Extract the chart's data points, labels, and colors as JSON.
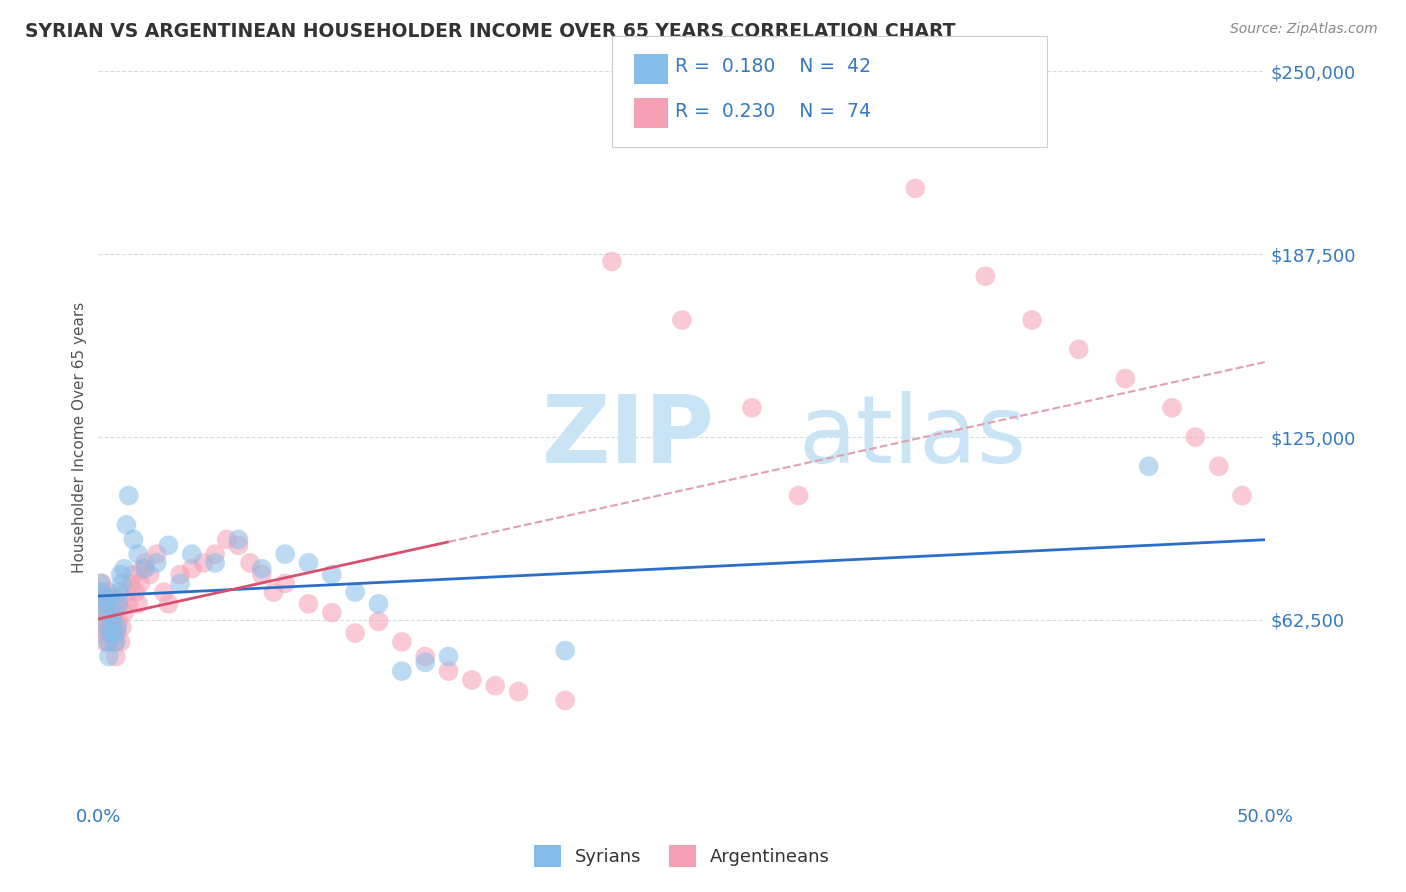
{
  "title": "SYRIAN VS ARGENTINEAN HOUSEHOLDER INCOME OVER 65 YEARS CORRELATION CHART",
  "source": "Source: ZipAtlas.com",
  "ylabel": "Householder Income Over 65 years",
  "xlim": [
    0.0,
    50.0
  ],
  "ylim": [
    0,
    250000
  ],
  "yticks": [
    0,
    62500,
    125000,
    187500,
    250000
  ],
  "ytick_labels": [
    "",
    "$62,500",
    "$125,000",
    "$187,500",
    "$250,000"
  ],
  "legend_R_syrian": "0.180",
  "legend_N_syrian": "42",
  "legend_R_argentinean": "0.230",
  "legend_N_argentinean": "74",
  "syrian_color": "#85bce8",
  "argentinean_color": "#f5a0b5",
  "trend_syrian_color": "#2b6ec7",
  "trend_argentinean_color": "#d94f6e",
  "watermark_zip": "ZIP",
  "watermark_atlas": "atlas",
  "watermark_color": "#c8e4f5",
  "background_color": "#ffffff",
  "syrian_x": [
    0.1,
    0.15,
    0.2,
    0.25,
    0.3,
    0.35,
    0.4,
    0.45,
    0.5,
    0.55,
    0.6,
    0.65,
    0.7,
    0.75,
    0.8,
    0.85,
    0.9,
    0.95,
    1.0,
    1.1,
    1.2,
    1.3,
    1.5,
    1.7,
    2.0,
    2.5,
    3.0,
    3.5,
    4.0,
    5.0,
    6.0,
    7.0,
    8.0,
    9.0,
    10.0,
    11.0,
    12.0,
    13.0,
    14.0,
    15.0,
    20.0,
    45.0
  ],
  "syrian_y": [
    75000,
    72000,
    68000,
    70000,
    65000,
    60000,
    55000,
    50000,
    58000,
    62000,
    70000,
    65000,
    58000,
    55000,
    60000,
    68000,
    72000,
    78000,
    75000,
    80000,
    95000,
    105000,
    90000,
    85000,
    80000,
    82000,
    88000,
    75000,
    85000,
    82000,
    90000,
    80000,
    85000,
    82000,
    78000,
    72000,
    68000,
    45000,
    48000,
    50000,
    52000,
    115000
  ],
  "argentinean_x": [
    0.1,
    0.12,
    0.15,
    0.18,
    0.2,
    0.22,
    0.25,
    0.28,
    0.3,
    0.32,
    0.35,
    0.38,
    0.4,
    0.42,
    0.45,
    0.5,
    0.55,
    0.6,
    0.65,
    0.7,
    0.75,
    0.8,
    0.85,
    0.9,
    0.95,
    1.0,
    1.1,
    1.2,
    1.3,
    1.4,
    1.5,
    1.6,
    1.7,
    1.8,
    1.9,
    2.0,
    2.2,
    2.5,
    2.8,
    3.0,
    3.5,
    4.0,
    4.5,
    5.0,
    5.5,
    6.0,
    6.5,
    7.0,
    7.5,
    8.0,
    9.0,
    10.0,
    11.0,
    12.0,
    13.0,
    14.0,
    15.0,
    16.0,
    17.0,
    18.0,
    20.0,
    22.0,
    25.0,
    28.0,
    30.0,
    35.0,
    38.0,
    40.0,
    42.0,
    44.0,
    46.0,
    47.0,
    48.0,
    49.0
  ],
  "argentinean_y": [
    72000,
    68000,
    75000,
    70000,
    65000,
    60000,
    58000,
    55000,
    62000,
    60000,
    68000,
    65000,
    72000,
    58000,
    55000,
    60000,
    65000,
    70000,
    62000,
    55000,
    50000,
    58000,
    62000,
    68000,
    55000,
    60000,
    65000,
    72000,
    68000,
    75000,
    78000,
    72000,
    68000,
    75000,
    80000,
    82000,
    78000,
    85000,
    72000,
    68000,
    78000,
    80000,
    82000,
    85000,
    90000,
    88000,
    82000,
    78000,
    72000,
    75000,
    68000,
    65000,
    58000,
    62000,
    55000,
    50000,
    45000,
    42000,
    40000,
    38000,
    35000,
    185000,
    165000,
    135000,
    105000,
    210000,
    180000,
    165000,
    155000,
    145000,
    135000,
    125000,
    115000,
    105000
  ],
  "grid_color": "#d4dce8",
  "tick_label_color": "#3579c0",
  "title_color": "#333333",
  "source_color": "#888888",
  "trend_dash_color": "#e0a0b0"
}
